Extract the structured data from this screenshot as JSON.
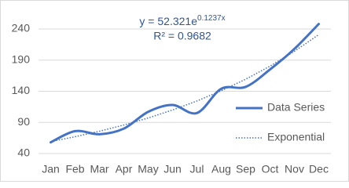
{
  "chart_data": {
    "type": "line",
    "categories": [
      "Jan",
      "Feb",
      "Mar",
      "Apr",
      "May",
      "Jun",
      "Jul",
      "Aug",
      "Sep",
      "Oct",
      "Nov",
      "Dec"
    ],
    "series": [
      {
        "name": "Data Series",
        "color": "#4472c4",
        "style": "solid",
        "smooth": true,
        "values": [
          58,
          76,
          71,
          80,
          107,
          118,
          105,
          144,
          147,
          175,
          208,
          248
        ]
      },
      {
        "name": "Exponential",
        "color": "#4472c4",
        "style": "dotted",
        "smooth": false,
        "values": [
          59.2,
          67.0,
          75.8,
          85.8,
          97.1,
          109.9,
          124.4,
          140.8,
          159.3,
          180.3,
          204.1,
          230.9
        ]
      }
    ],
    "annotations": {
      "equation": {
        "base": "y = 52.321e",
        "exponent": "0.1237x"
      },
      "r_squared": "R² = 0.9682"
    },
    "ylim": [
      40,
      240
    ],
    "yticks": [
      40,
      90,
      140,
      190,
      240
    ],
    "grid": true,
    "legend": "right"
  }
}
